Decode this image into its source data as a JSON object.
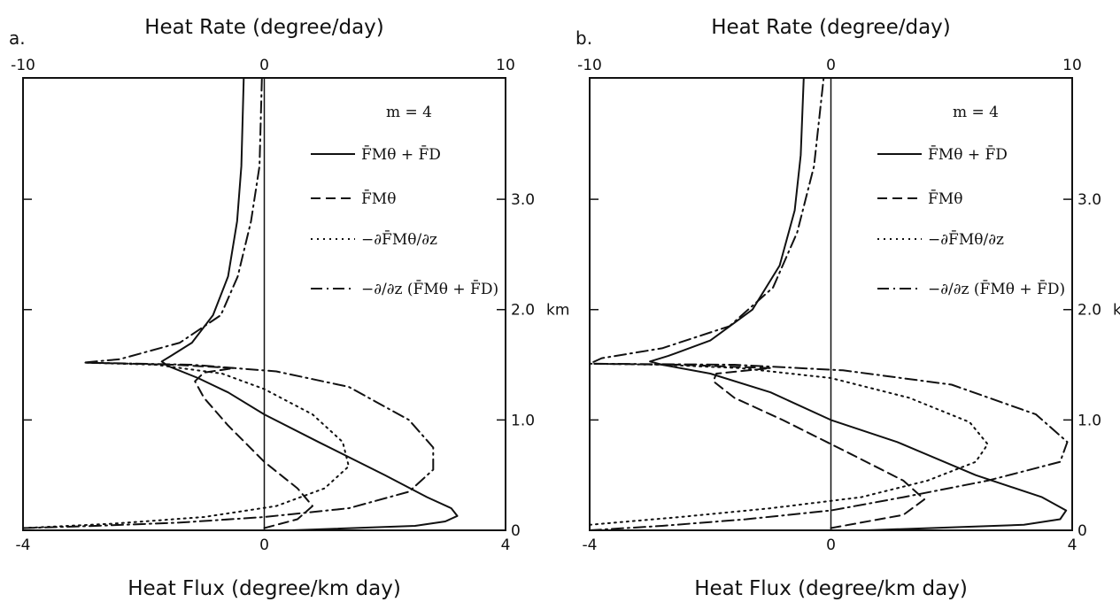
{
  "chart_data": [
    {
      "type": "line",
      "panel_label": "a.",
      "top_axis_title": "Heat Rate (degree/day)",
      "top_ticks": [
        "-10",
        "0",
        "10"
      ],
      "bottom_axis_title": "Heat Flux (degree/km day)",
      "bottom_ticks": [
        "-4",
        "0",
        "4"
      ],
      "right_ticks": [
        "0",
        "1.0",
        "2.0",
        "3.0"
      ],
      "right_unit": "km",
      "annotation": "m = 4",
      "xlim_flux": [
        -4,
        4
      ],
      "xlim_rate": [
        -10,
        10
      ],
      "ylim_km": [
        0,
        4.1
      ],
      "legend": [
        "F̄Mθ + F̄D",
        "F̄Mθ",
        "−∂F̄Mθ/∂z",
        "−∂/∂z (F̄Mθ + F̄D)"
      ],
      "series": [
        {
          "style": "solid",
          "axis": "flux",
          "points": [
            [
              0.45,
              0.0
            ],
            [
              2.5,
              0.04
            ],
            [
              3.0,
              0.08
            ],
            [
              3.2,
              0.13
            ],
            [
              3.1,
              0.2
            ],
            [
              2.7,
              0.3
            ],
            [
              2.0,
              0.5
            ],
            [
              0.9,
              0.8
            ],
            [
              0.0,
              1.05
            ],
            [
              -0.6,
              1.25
            ],
            [
              -1.1,
              1.38
            ],
            [
              -1.6,
              1.49
            ],
            [
              -1.7,
              1.53
            ],
            [
              -1.55,
              1.58
            ],
            [
              -1.2,
              1.7
            ],
            [
              -0.85,
              1.95
            ],
            [
              -0.6,
              2.3
            ],
            [
              -0.45,
              2.8
            ],
            [
              -0.38,
              3.3
            ],
            [
              -0.34,
              4.1
            ]
          ]
        },
        {
          "style": "dashed",
          "axis": "flux",
          "points": [
            [
              0.0,
              0.02
            ],
            [
              0.55,
              0.1
            ],
            [
              0.8,
              0.22
            ],
            [
              0.55,
              0.38
            ],
            [
              0.0,
              0.62
            ],
            [
              -0.6,
              0.95
            ],
            [
              -1.0,
              1.2
            ],
            [
              -1.15,
              1.35
            ],
            [
              -1.0,
              1.43
            ],
            [
              -0.5,
              1.47
            ],
            [
              -1.5,
              1.5
            ],
            [
              -3.0,
              1.52
            ]
          ]
        },
        {
          "style": "dotted",
          "axis": "flux",
          "points": [
            [
              -4.0,
              0.02
            ],
            [
              -2.5,
              0.06
            ],
            [
              -1.0,
              0.12
            ],
            [
              0.2,
              0.22
            ],
            [
              1.0,
              0.38
            ],
            [
              1.4,
              0.58
            ],
            [
              1.3,
              0.8
            ],
            [
              0.8,
              1.05
            ],
            [
              0.0,
              1.28
            ],
            [
              -0.7,
              1.42
            ],
            [
              -1.8,
              1.5
            ],
            [
              -3.0,
              1.52
            ]
          ]
        },
        {
          "style": "dashdot",
          "axis": "rate",
          "points": [
            [
              -10.0,
              0.02
            ],
            [
              -7.0,
              0.04
            ],
            [
              -3.5,
              0.07
            ],
            [
              0.0,
              0.12
            ],
            [
              3.5,
              0.2
            ],
            [
              6.0,
              0.35
            ],
            [
              7.0,
              0.55
            ],
            [
              7.0,
              0.75
            ],
            [
              6.0,
              1.0
            ],
            [
              3.5,
              1.3
            ],
            [
              0.5,
              1.44
            ],
            [
              -3.0,
              1.5
            ],
            [
              -7.5,
              1.52
            ],
            [
              -6.0,
              1.55
            ],
            [
              -3.5,
              1.7
            ],
            [
              -1.8,
              1.95
            ],
            [
              -1.1,
              2.3
            ],
            [
              -0.55,
              2.8
            ],
            [
              -0.2,
              3.3
            ],
            [
              -0.1,
              4.1
            ]
          ]
        }
      ]
    },
    {
      "type": "line",
      "panel_label": "b.",
      "top_axis_title": "Heat Rate (degree/day)",
      "top_ticks": [
        "-10",
        "0",
        "10"
      ],
      "bottom_axis_title": "Heat Flux (degree/km day)",
      "bottom_ticks": [
        "-4",
        "0",
        "4"
      ],
      "right_ticks": [
        "0",
        "1.0",
        "2.0",
        "3.0"
      ],
      "right_unit": "km",
      "annotation": "m = 4",
      "xlim_flux": [
        -4,
        4
      ],
      "xlim_rate": [
        -10,
        10
      ],
      "ylim_km": [
        0,
        4.1
      ],
      "legend": [
        "F̄Mθ + F̄D",
        "F̄Mθ",
        "−∂F̄Mθ/∂z",
        "−∂/∂z (F̄Mθ + F̄D)"
      ],
      "series": [
        {
          "style": "solid",
          "axis": "flux",
          "points": [
            [
              0.6,
              0.0
            ],
            [
              3.2,
              0.05
            ],
            [
              3.8,
              0.1
            ],
            [
              3.9,
              0.18
            ],
            [
              3.5,
              0.3
            ],
            [
              2.4,
              0.5
            ],
            [
              1.1,
              0.8
            ],
            [
              0.0,
              1.0
            ],
            [
              -1.0,
              1.25
            ],
            [
              -2.0,
              1.42
            ],
            [
              -2.8,
              1.5
            ],
            [
              -3.0,
              1.53
            ],
            [
              -2.7,
              1.58
            ],
            [
              -2.0,
              1.72
            ],
            [
              -1.3,
              2.0
            ],
            [
              -0.85,
              2.4
            ],
            [
              -0.6,
              2.9
            ],
            [
              -0.5,
              3.4
            ],
            [
              -0.45,
              4.1
            ]
          ]
        },
        {
          "style": "dashed",
          "axis": "flux",
          "points": [
            [
              0.0,
              0.02
            ],
            [
              1.2,
              0.14
            ],
            [
              1.55,
              0.28
            ],
            [
              1.2,
              0.45
            ],
            [
              0.3,
              0.7
            ],
            [
              -0.8,
              1.0
            ],
            [
              -1.6,
              1.2
            ],
            [
              -1.95,
              1.35
            ],
            [
              -1.9,
              1.42
            ],
            [
              -1.0,
              1.47
            ],
            [
              -2.5,
              1.5
            ],
            [
              -4.0,
              1.51
            ]
          ]
        },
        {
          "style": "dotted",
          "axis": "flux",
          "points": [
            [
              -4.0,
              0.05
            ],
            [
              -2.5,
              0.12
            ],
            [
              -1.0,
              0.2
            ],
            [
              0.5,
              0.3
            ],
            [
              1.6,
              0.45
            ],
            [
              2.4,
              0.62
            ],
            [
              2.6,
              0.78
            ],
            [
              2.3,
              0.98
            ],
            [
              1.3,
              1.2
            ],
            [
              0.0,
              1.38
            ],
            [
              -1.5,
              1.47
            ],
            [
              -2.8,
              1.5
            ],
            [
              -4.0,
              1.51
            ]
          ]
        },
        {
          "style": "dashdot",
          "axis": "rate",
          "points": [
            [
              -10.0,
              0.0
            ],
            [
              -7.0,
              0.04
            ],
            [
              -3.5,
              0.1
            ],
            [
              0.0,
              0.18
            ],
            [
              3.0,
              0.3
            ],
            [
              6.5,
              0.45
            ],
            [
              9.5,
              0.62
            ],
            [
              9.8,
              0.8
            ],
            [
              8.5,
              1.05
            ],
            [
              5.0,
              1.32
            ],
            [
              0.5,
              1.45
            ],
            [
              -4.0,
              1.5
            ],
            [
              -10.0,
              1.51
            ],
            [
              -9.5,
              1.56
            ],
            [
              -7.0,
              1.65
            ],
            [
              -4.2,
              1.85
            ],
            [
              -2.4,
              2.2
            ],
            [
              -1.4,
              2.7
            ],
            [
              -0.7,
              3.3
            ],
            [
              -0.3,
              4.1
            ]
          ]
        }
      ]
    }
  ]
}
